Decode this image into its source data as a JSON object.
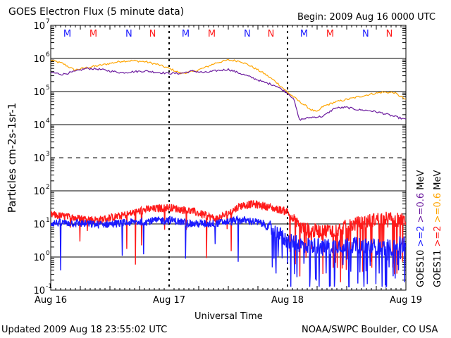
{
  "chart_data": {
    "type": "line",
    "title": "GOES Electron Flux (5 minute data)",
    "begin": "Begin: 2009 Aug 16 0000 UTC",
    "xlabel": "Universal Time",
    "ylabel": "Particles cm-2s-1sr-1",
    "x_ticks": [
      "Aug 16",
      "Aug 17",
      "Aug 18",
      "Aug 19"
    ],
    "x_range_days": [
      0,
      3
    ],
    "ylim_log10": [
      -1,
      7
    ],
    "y_ticks": [
      {
        "exp": 7,
        "label": "10",
        "sup": "7"
      },
      {
        "exp": 6,
        "label": "10",
        "sup": "6"
      },
      {
        "exp": 5,
        "label": "10",
        "sup": "5"
      },
      {
        "exp": 4,
        "label": "10",
        "sup": "4"
      },
      {
        "exp": 3,
        "label": "10",
        "sup": "3"
      },
      {
        "exp": 2,
        "label": "10",
        "sup": "2"
      },
      {
        "exp": 1,
        "label": "10",
        "sup": "1"
      },
      {
        "exp": 0,
        "label": "10",
        "sup": "0"
      },
      {
        "exp": -1,
        "label": "10",
        "sup": "-1"
      }
    ],
    "markers": [
      {
        "t": 0.14,
        "label": "M",
        "color": "#1a1aff"
      },
      {
        "t": 0.36,
        "label": "M",
        "color": "#ff1a1a"
      },
      {
        "t": 0.66,
        "label": "N",
        "color": "#1a1aff"
      },
      {
        "t": 0.86,
        "label": "N",
        "color": "#ff1a1a"
      },
      {
        "t": 1.14,
        "label": "M",
        "color": "#1a1aff"
      },
      {
        "t": 1.36,
        "label": "M",
        "color": "#ff1a1a"
      },
      {
        "t": 1.66,
        "label": "N",
        "color": "#1a1aff"
      },
      {
        "t": 1.86,
        "label": "N",
        "color": "#ff1a1a"
      },
      {
        "t": 2.14,
        "label": "M",
        "color": "#1a1aff"
      },
      {
        "t": 2.36,
        "label": "M",
        "color": "#ff1a1a"
      },
      {
        "t": 2.66,
        "label": "N",
        "color": "#1a1aff"
      },
      {
        "t": 2.86,
        "label": "N",
        "color": "#ff1a1a"
      }
    ],
    "series": [
      {
        "name": ">=0.6 MeV (GOES11)",
        "color": "#ffa500",
        "t": [
          0,
          0.1,
          0.2,
          0.3,
          0.4,
          0.5,
          0.6,
          0.7,
          0.8,
          0.9,
          1.0,
          1.1,
          1.2,
          1.3,
          1.4,
          1.5,
          1.6,
          1.7,
          1.8,
          1.9,
          2.0,
          2.1,
          2.2,
          2.25,
          2.3,
          2.4,
          2.5,
          2.6,
          2.7,
          2.8,
          2.9,
          3.0
        ],
        "log10": [
          5.95,
          5.85,
          5.65,
          5.72,
          5.78,
          5.85,
          5.92,
          5.93,
          5.9,
          5.82,
          5.7,
          5.55,
          5.6,
          5.72,
          5.87,
          5.95,
          5.92,
          5.75,
          5.55,
          5.3,
          4.98,
          4.7,
          4.45,
          4.38,
          4.55,
          4.68,
          4.76,
          4.84,
          4.92,
          4.98,
          4.97,
          4.75
        ]
      },
      {
        "name": ">=0.6 MeV (GOES10)",
        "color": "#6b1a9e",
        "t": [
          0,
          0.1,
          0.2,
          0.3,
          0.4,
          0.5,
          0.6,
          0.7,
          0.8,
          0.9,
          1.0,
          1.1,
          1.2,
          1.3,
          1.4,
          1.5,
          1.6,
          1.7,
          1.8,
          1.9,
          2.0,
          2.05,
          2.1,
          2.2,
          2.3,
          2.4,
          2.5,
          2.6,
          2.7,
          2.8,
          2.9,
          3.0
        ],
        "log10": [
          5.58,
          5.52,
          5.6,
          5.7,
          5.68,
          5.62,
          5.57,
          5.6,
          5.62,
          5.58,
          5.55,
          5.55,
          5.62,
          5.57,
          5.63,
          5.67,
          5.55,
          5.42,
          5.28,
          5.18,
          4.95,
          4.8,
          4.15,
          4.22,
          4.25,
          4.5,
          4.52,
          4.45,
          4.42,
          4.35,
          4.25,
          4.15
        ]
      },
      {
        "name": ">=2 MeV (GOES11)",
        "color": "#ff1a1a",
        "t": [
          0,
          0.2,
          0.4,
          0.6,
          0.8,
          1.0,
          1.2,
          1.4,
          1.5,
          1.6,
          1.7,
          1.8,
          1.9,
          2.0,
          2.05,
          2.1,
          2.15,
          2.2,
          2.4,
          2.6,
          2.8,
          3.0
        ],
        "log10": [
          1.28,
          1.18,
          1.12,
          1.25,
          1.43,
          1.5,
          1.38,
          1.15,
          1.32,
          1.55,
          1.6,
          1.55,
          1.45,
          1.38,
          1.1,
          0.92,
          0.85,
          0.78,
          0.82,
          1.02,
          1.18,
          1.1
        ]
      },
      {
        "name": ">=2 MeV (GOES10)",
        "color": "#1a1aff",
        "t": [
          0,
          0.2,
          0.4,
          0.6,
          0.8,
          1.0,
          1.2,
          1.4,
          1.6,
          1.7,
          1.8,
          1.9,
          2.0,
          2.1,
          2.3,
          2.5,
          2.7,
          2.9,
          3.0
        ],
        "log10": [
          1.03,
          1.03,
          0.98,
          1.02,
          1.08,
          1.12,
          1.0,
          1.02,
          1.12,
          1.08,
          1.0,
          0.75,
          0.48,
          0.38,
          0.32,
          0.38,
          0.32,
          0.28,
          0.42
        ]
      }
    ],
    "legend_goes10": {
      "label": "GOES10",
      "hi": ">=2",
      "lo": ">=0.6",
      "unit": "MeV",
      "hi_color": "#1a1aff",
      "lo_color": "#6b1a9e"
    },
    "legend_goes11": {
      "label": "GOES11",
      "hi": ">=2",
      "lo": ">=0.6",
      "unit": "MeV",
      "hi_color": "#ff1a1a",
      "lo_color": "#ffa500"
    }
  },
  "footer": {
    "updated": "Updated 2009 Aug 18 23:55:02 UTC",
    "source": "NOAA/SWPC Boulder, CO USA"
  }
}
